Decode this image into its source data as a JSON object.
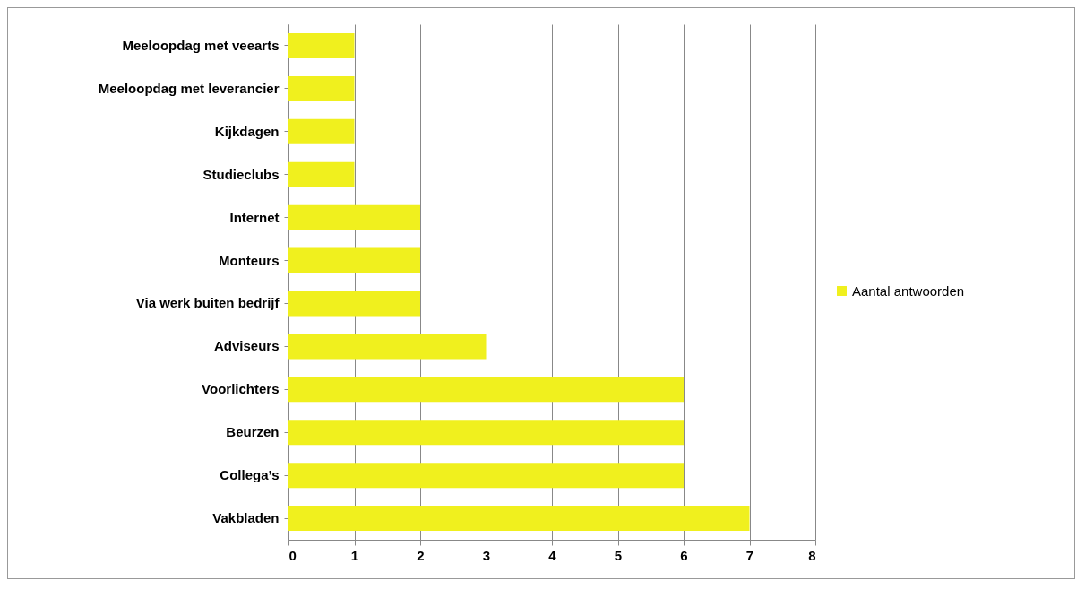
{
  "chart_data": {
    "type": "bar",
    "orientation": "horizontal",
    "categories": [
      "Meeloopdag met veearts",
      "Meeloopdag met leverancier",
      "Kijkdagen",
      "Studieclubs",
      "Internet",
      "Monteurs",
      "Via werk buiten bedrijf",
      "Adviseurs",
      "Voorlichters",
      "Beurzen",
      "Collega’s",
      "Vakbladen"
    ],
    "series": [
      {
        "name": "Aantal antwoorden",
        "color": "#f0f01e",
        "values": [
          1,
          1,
          1,
          1,
          2,
          2,
          2,
          3,
          6,
          6,
          6,
          7
        ]
      }
    ],
    "xlim": [
      0,
      8
    ],
    "xticks": [
      0,
      1,
      2,
      3,
      4,
      5,
      6,
      7,
      8
    ],
    "grid": "x",
    "legend": "right"
  }
}
